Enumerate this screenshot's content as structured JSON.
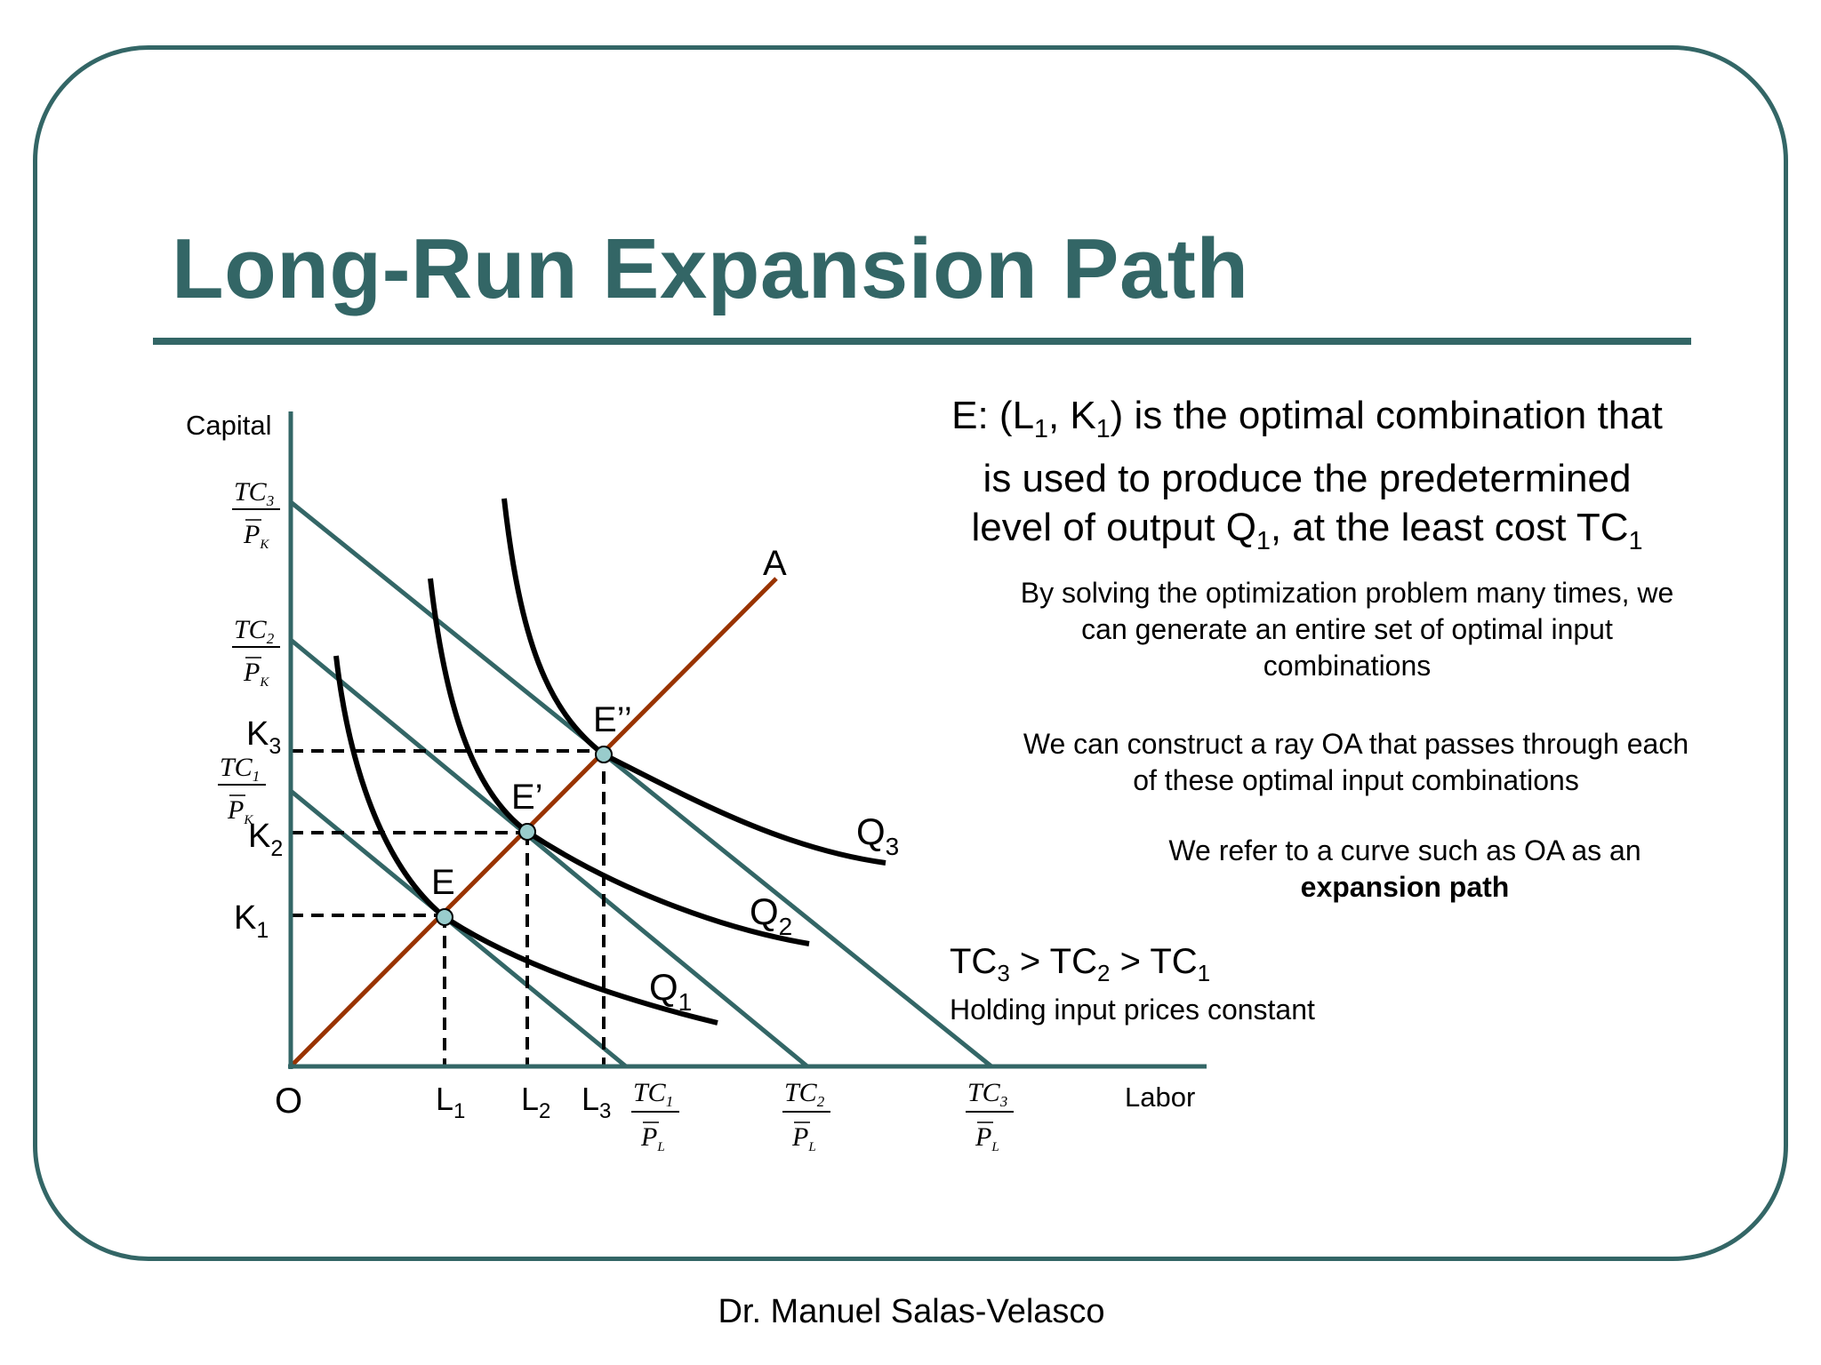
{
  "title": "Long-Run Expansion Path",
  "main_statement": {
    "line1_a": "E: (L",
    "line1_b": "1",
    "line1_c": ", K",
    "line1_d": "1",
    "line1_e": ") is the optimal combination that",
    "line2": "is used to produce the predetermined",
    "line3_a": "level of output Q",
    "line3_b": "1",
    "line3_c": ", at the least cost TC",
    "line3_d": "1"
  },
  "paragraphs": {
    "optimization": "By solving the optimization problem many times, we can generate an entire set of optimal input combinations",
    "ray": "We can construct a ray OA that passes through each of these optimal input combinations",
    "expansion_prefix": "We refer to a curve such as OA as an",
    "expansion_bold": "expansion path"
  },
  "tc_inequality": {
    "a": "TC",
    "b": "3",
    "c": " > TC",
    "d": "2",
    "e": " > TC",
    "f": "1"
  },
  "holding": "Holding input prices constant",
  "author": "Dr. Manuel Salas-Velasco",
  "diagram": {
    "y_axis_label": "Capital",
    "x_axis_label": "Labor",
    "origin_label": "O",
    "ray_label": "A",
    "points": [
      {
        "name": "E",
        "labor": "L",
        "labor_sub": "1",
        "capital": "K",
        "capital_sub": "1"
      },
      {
        "name": "E’",
        "labor": "L",
        "labor_sub": "2",
        "capital": "K",
        "capital_sub": "2"
      },
      {
        "name": "E’’",
        "labor": "L",
        "labor_sub": "3",
        "capital": "K",
        "capital_sub": "3"
      }
    ],
    "isoquants": [
      {
        "name": "Q",
        "sub": "1"
      },
      {
        "name": "Q",
        "sub": "2"
      },
      {
        "name": "Q",
        "sub": "3"
      }
    ],
    "intercepts": [
      {
        "num": "TC",
        "num_sub": "1",
        "den_k": "P",
        "den_k_sub": "K",
        "den_l": "P",
        "den_l_sub": "L"
      },
      {
        "num": "TC",
        "num_sub": "2",
        "den_k": "P",
        "den_k_sub": "K",
        "den_l": "P",
        "den_l_sub": "L"
      },
      {
        "num": "TC",
        "num_sub": "3",
        "den_k": "P",
        "den_k_sub": "K",
        "den_l": "P",
        "den_l_sub": "L"
      }
    ]
  },
  "colors": {
    "teal": "#336666",
    "ray": "#993300",
    "point_fill": "#99cccc"
  }
}
